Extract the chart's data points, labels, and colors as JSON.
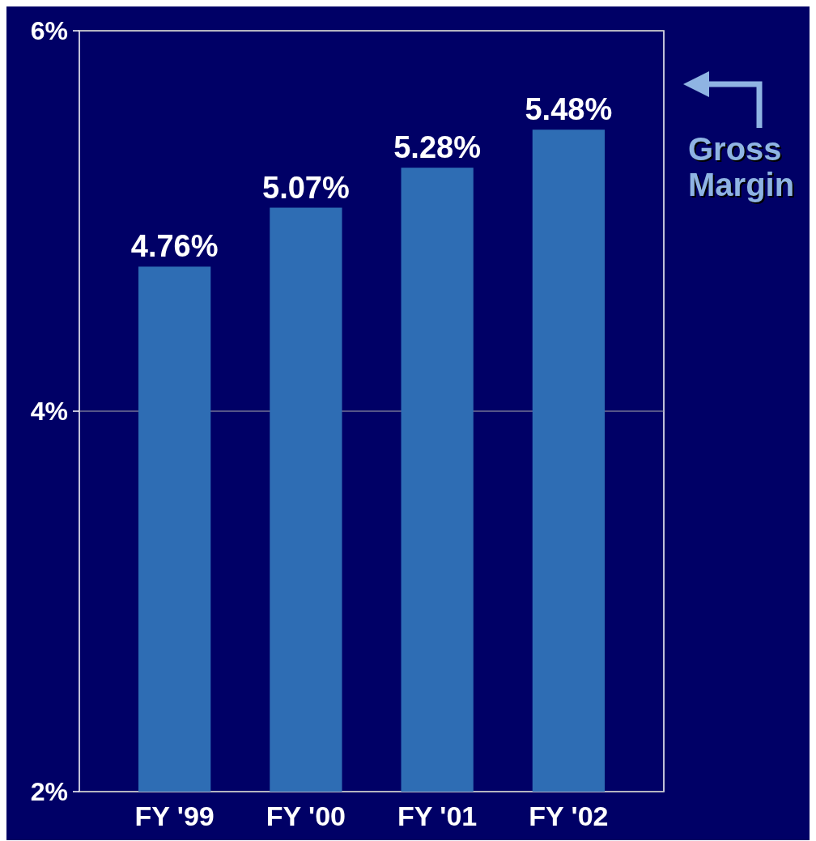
{
  "chart_data": {
    "type": "bar",
    "categories": [
      "FY '99",
      "FY '00",
      "FY '01",
      "FY '02"
    ],
    "values": [
      4.76,
      5.07,
      5.28,
      5.48
    ],
    "color": "#2e6db4",
    "value_labels": [
      "4.76%",
      "5.07%",
      "5.28%",
      "5.48%"
    ],
    "ylim": [
      2,
      6
    ],
    "yticks": [
      {
        "value": 2,
        "label": "2%"
      },
      {
        "value": 4,
        "label": "4%"
      },
      {
        "value": 6,
        "label": "6%"
      }
    ],
    "grid": "y",
    "annotations": [
      "Gross Margin"
    ]
  }
}
